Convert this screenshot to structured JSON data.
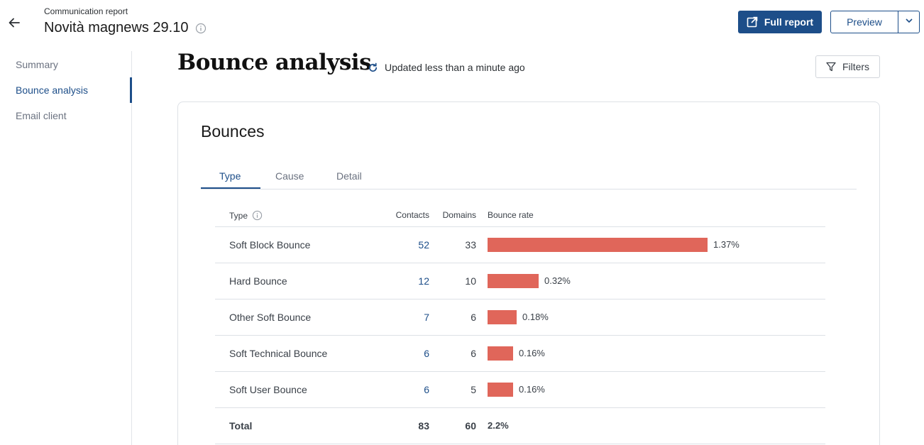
{
  "header": {
    "breadcrumb": "Communication report",
    "title": "Novità magnews 29.10",
    "full_report_label": "Full report",
    "preview_label": "Preview"
  },
  "sidebar": {
    "items": [
      {
        "label": "Summary"
      },
      {
        "label": "Bounce analysis"
      },
      {
        "label": "Email client"
      }
    ]
  },
  "main": {
    "title": "Bounce analysis",
    "updated_text": "Updated less than a minute ago",
    "filters_label": "Filters"
  },
  "card": {
    "title": "Bounces",
    "tabs": [
      {
        "label": "Type"
      },
      {
        "label": "Cause"
      },
      {
        "label": "Detail"
      }
    ]
  },
  "table": {
    "columns": {
      "type": "Type",
      "contacts": "Contacts",
      "domains": "Domains",
      "bounce_rate": "Bounce rate"
    },
    "rows": [
      {
        "type": "Soft Block Bounce",
        "contacts": "52",
        "domains": "33",
        "rate": "1.37%",
        "rate_value": 1.37
      },
      {
        "type": "Hard Bounce",
        "contacts": "12",
        "domains": "10",
        "rate": "0.32%",
        "rate_value": 0.32
      },
      {
        "type": "Other Soft Bounce",
        "contacts": "7",
        "domains": "6",
        "rate": "0.18%",
        "rate_value": 0.18
      },
      {
        "type": "Soft Technical Bounce",
        "contacts": "6",
        "domains": "6",
        "rate": "0.16%",
        "rate_value": 0.16
      },
      {
        "type": "Soft User Bounce",
        "contacts": "6",
        "domains": "5",
        "rate": "0.16%",
        "rate_value": 0.16
      }
    ],
    "total": {
      "type": "Total",
      "contacts": "83",
      "domains": "60",
      "rate": "2.2%"
    }
  },
  "colors": {
    "accent": "#1d4e89",
    "bar": "#e0665a"
  }
}
